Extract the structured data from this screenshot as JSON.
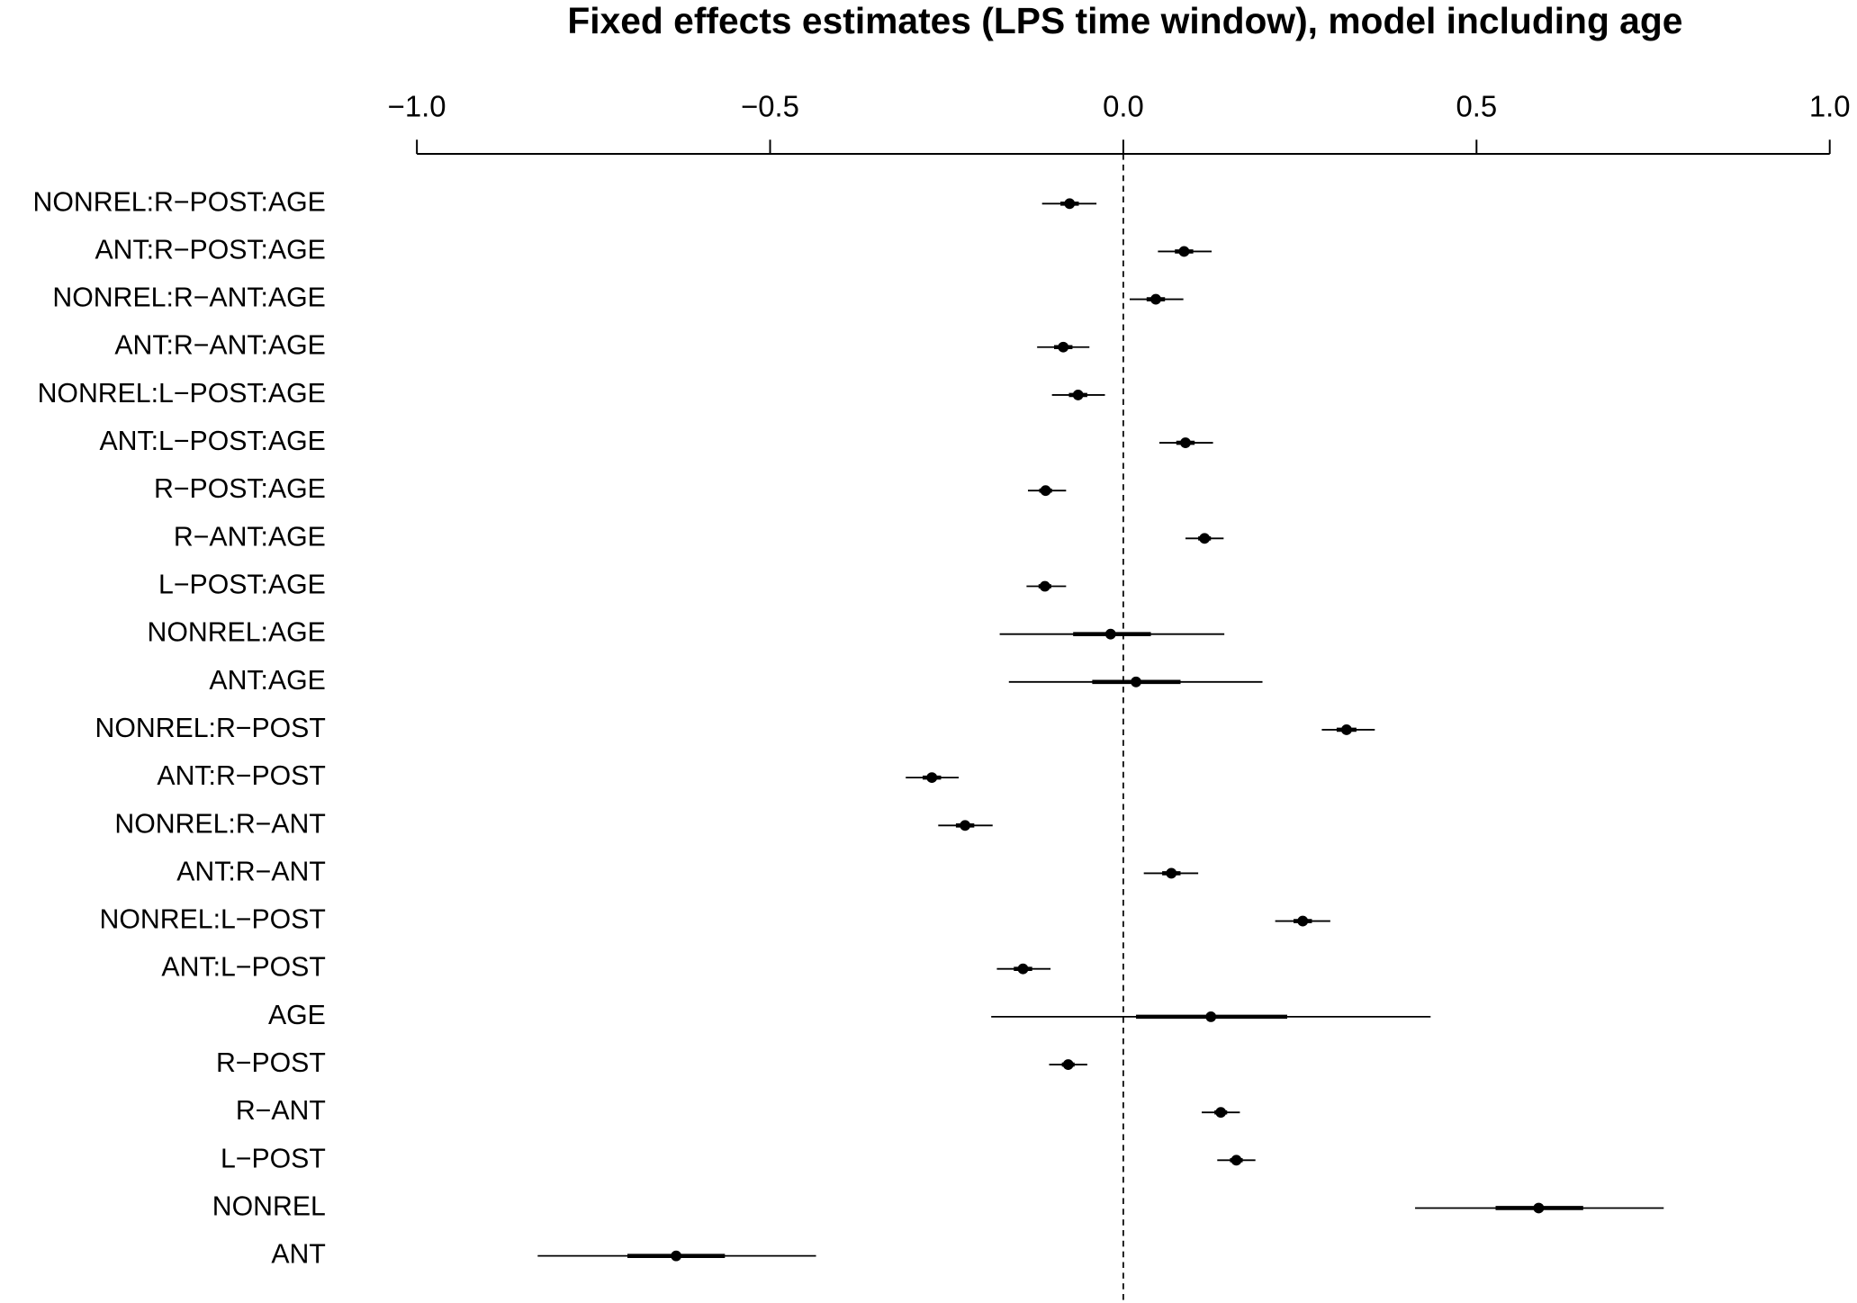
{
  "chart_data": {
    "type": "forest",
    "title": "Fixed effects estimates (LPS time window), model including age",
    "xlim": [
      -1.0,
      1.0
    ],
    "xticks": [
      {
        "value": -1.0,
        "label": "−1.0"
      },
      {
        "value": -0.5,
        "label": "−0.5"
      },
      {
        "value": 0.0,
        "label": "0.0"
      },
      {
        "value": 0.5,
        "label": "0.5"
      },
      {
        "value": 1.0,
        "label": "1.0"
      }
    ],
    "reference_line": 0,
    "color": "#000000",
    "categories": [
      "NONREL:R−POST:AGE",
      "ANT:R−POST:AGE",
      "NONREL:R−ANT:AGE",
      "ANT:R−ANT:AGE",
      "NONREL:L−POST:AGE",
      "ANT:L−POST:AGE",
      "R−POST:AGE",
      "R−ANT:AGE",
      "L−POST:AGE",
      "NONREL:AGE",
      "ANT:AGE",
      "NONREL:R−POST",
      "ANT:R−POST",
      "NONREL:R−ANT",
      "ANT:R−ANT",
      "NONREL:L−POST",
      "ANT:L−POST",
      "AGE",
      "R−POST",
      "R−ANT",
      "L−POST",
      "NONREL",
      "ANT"
    ],
    "values": [
      -0.076,
      0.086,
      0.046,
      -0.085,
      -0.064,
      0.088,
      -0.11,
      0.115,
      -0.111,
      -0.018,
      0.018,
      0.316,
      -0.271,
      -0.224,
      0.068,
      0.254,
      -0.142,
      0.124,
      -0.078,
      0.138,
      0.16,
      0.588,
      -0.633
    ],
    "lower_outer": [
      -0.115,
      0.049,
      0.009,
      -0.122,
      -0.101,
      0.051,
      -0.135,
      0.088,
      -0.137,
      -0.175,
      -0.162,
      0.281,
      -0.308,
      -0.262,
      0.029,
      0.215,
      -0.179,
      -0.187,
      -0.105,
      0.111,
      0.133,
      0.413,
      -0.829
    ],
    "upper_outer": [
      -0.038,
      0.125,
      0.085,
      -0.048,
      -0.026,
      0.127,
      -0.081,
      0.142,
      -0.081,
      0.143,
      0.197,
      0.356,
      -0.233,
      -0.185,
      0.106,
      0.293,
      -0.103,
      0.435,
      -0.051,
      0.165,
      0.187,
      0.765,
      -0.435
    ],
    "lower_inner": [
      -0.089,
      0.073,
      0.033,
      -0.098,
      -0.077,
      0.075,
      -0.119,
      0.106,
      -0.12,
      -0.071,
      -0.044,
      0.302,
      -0.284,
      -0.237,
      0.055,
      0.241,
      -0.155,
      0.018,
      -0.087,
      0.129,
      0.151,
      0.527,
      -0.702
    ],
    "upper_inner": [
      -0.063,
      0.099,
      0.059,
      -0.072,
      -0.051,
      0.101,
      -0.101,
      0.124,
      -0.102,
      0.039,
      0.081,
      0.33,
      -0.258,
      -0.211,
      0.081,
      0.267,
      -0.129,
      0.232,
      -0.069,
      0.147,
      0.169,
      0.651,
      -0.564
    ]
  }
}
